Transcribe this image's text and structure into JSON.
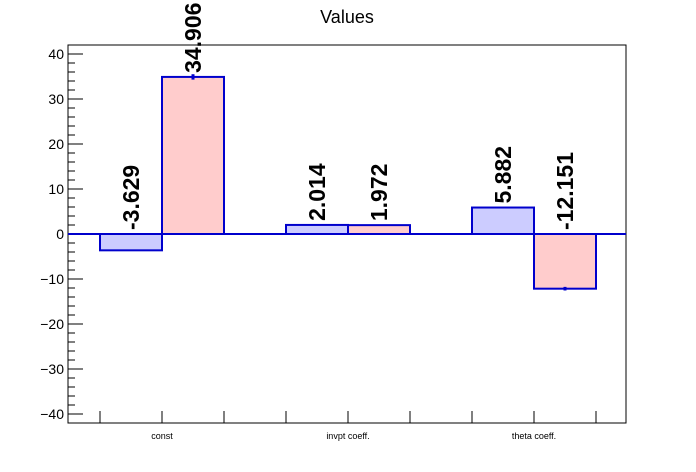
{
  "chart_data": {
    "type": "bar",
    "title": "Values",
    "xlabel": "",
    "ylabel": "",
    "ylim": [
      -42,
      42
    ],
    "yticks": [
      -40,
      -30,
      -20,
      -10,
      0,
      10,
      20,
      30,
      40
    ],
    "ytick_labels": [
      "−40",
      "−30",
      "−20",
      "−10",
      "0",
      "10",
      "20",
      "30",
      "40"
    ],
    "categories": [
      "const",
      "invpt coeff.",
      "theta coeff."
    ],
    "series": [
      {
        "values": [
          -3.629,
          2.014,
          5.882
        ],
        "labels": [
          "-3.629",
          "2.014",
          "5.882"
        ],
        "errors": [
          0.0,
          0.0,
          0.0
        ],
        "fill": "#ccccff",
        "stroke": "#0000cc"
      },
      {
        "values": [
          34.906,
          1.972,
          -12.151
        ],
        "labels": [
          "34.906",
          "1.972",
          "-12.151"
        ],
        "errors": [
          0.6,
          0.0,
          0.4
        ],
        "fill": "#ffcccc",
        "stroke": "#0000cc"
      }
    ],
    "grid": false,
    "legend": "none"
  }
}
